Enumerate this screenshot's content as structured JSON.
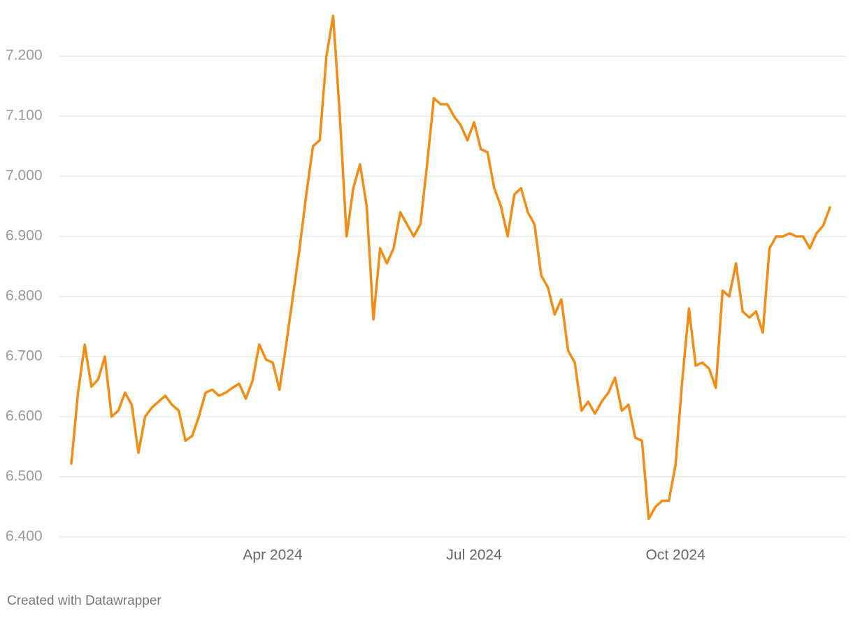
{
  "chart_data": {
    "type": "line",
    "categories": [
      null,
      null,
      null,
      null,
      null,
      null,
      null,
      null,
      null,
      null,
      null,
      null,
      null,
      null,
      null,
      null,
      null,
      null,
      null,
      null,
      null,
      null,
      null,
      null,
      null,
      null,
      null,
      null,
      null,
      null,
      "Apr 2024",
      null,
      null,
      null,
      null,
      null,
      null,
      null,
      null,
      null,
      null,
      null,
      null,
      null,
      null,
      null,
      null,
      null,
      null,
      null,
      null,
      null,
      null,
      null,
      null,
      null,
      null,
      null,
      null,
      null,
      "Jul 2024",
      null,
      null,
      null,
      null,
      null,
      null,
      null,
      null,
      null,
      null,
      null,
      null,
      null,
      null,
      null,
      null,
      null,
      null,
      null,
      null,
      null,
      null,
      null,
      null,
      null,
      null,
      null,
      null,
      null,
      "Oct 2024",
      null,
      null,
      null,
      null,
      null,
      null,
      null,
      null,
      null,
      null,
      null,
      null,
      null,
      null,
      null,
      null,
      null,
      null,
      null,
      null,
      null,
      null,
      null
    ],
    "values": [
      6.522,
      6.64,
      6.72,
      6.65,
      6.662,
      6.7,
      6.6,
      6.61,
      6.64,
      6.62,
      6.54,
      6.6,
      6.615,
      6.625,
      6.635,
      6.62,
      6.61,
      6.56,
      6.568,
      6.6,
      6.64,
      6.645,
      6.635,
      6.64,
      6.648,
      6.655,
      6.63,
      6.66,
      6.72,
      6.695,
      6.69,
      6.645,
      6.72,
      6.8,
      6.88,
      6.97,
      7.05,
      7.06,
      7.2,
      7.267,
      7.1,
      6.9,
      6.98,
      7.02,
      6.95,
      6.762,
      6.88,
      6.855,
      6.88,
      6.94,
      6.92,
      6.9,
      6.92,
      7.02,
      7.13,
      7.12,
      7.12,
      7.1,
      7.085,
      7.06,
      7.09,
      7.045,
      7.04,
      6.98,
      6.95,
      6.9,
      6.97,
      6.98,
      6.94,
      6.92,
      6.835,
      6.815,
      6.77,
      6.795,
      6.71,
      6.69,
      6.61,
      6.625,
      6.605,
      6.625,
      6.64,
      6.665,
      6.61,
      6.62,
      6.565,
      6.56,
      6.43,
      6.45,
      6.46,
      6.46,
      6.52,
      6.66,
      6.78,
      6.685,
      6.69,
      6.68,
      6.648,
      6.81,
      6.8,
      6.855,
      6.775,
      6.765,
      6.775,
      6.74,
      6.88,
      6.9,
      6.9,
      6.905,
      6.9,
      6.9,
      6.88,
      6.905,
      6.918,
      6.948
    ],
    "color": "#f28c13",
    "ylim": [
      6.4,
      7.27
    ],
    "yticks": [
      {
        "value": 6.4,
        "label": "6.400"
      },
      {
        "value": 6.5,
        "label": "6.500"
      },
      {
        "value": 6.6,
        "label": "6.600"
      },
      {
        "value": 6.7,
        "label": "6.700"
      },
      {
        "value": 6.8,
        "label": "6.800"
      },
      {
        "value": 6.9,
        "label": "6.900"
      },
      {
        "value": 7.0,
        "label": "7.000"
      },
      {
        "value": 7.1,
        "label": "7.100"
      },
      {
        "value": 7.2,
        "label": "7.200"
      }
    ],
    "grid": true,
    "source": "Created with Datawrapper"
  }
}
